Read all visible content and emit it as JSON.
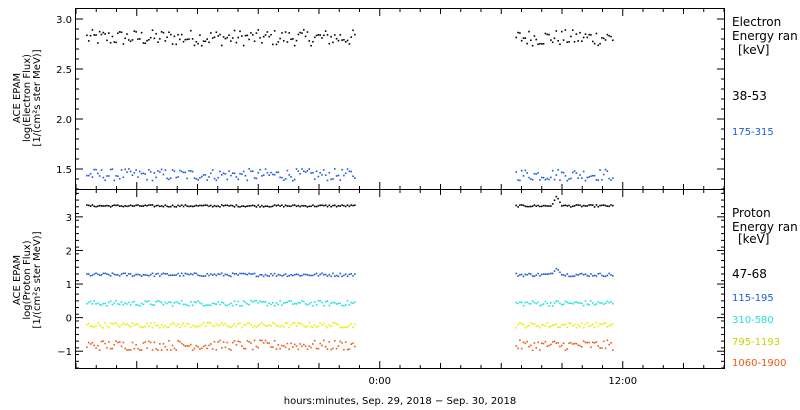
{
  "chart_data": [
    {
      "type": "scatter",
      "ylabel": [
        "ACE EPAM",
        "log(Electron Flux)",
        "[1/(cm²s ster MeV)]"
      ],
      "ylim": [
        1.3,
        3.1
      ],
      "yticks": [
        1.5,
        2.0,
        2.5,
        3.0
      ],
      "ytick_labels": [
        "1.5",
        "2.0",
        "2.5",
        "3.0"
      ],
      "legend": {
        "title": "Electron",
        "subtitle": "Energy ran",
        "unit": "[keV]"
      },
      "series": [
        {
          "name": "38-53",
          "color": "#000000",
          "mean": 2.82,
          "amp": 0.08
        },
        {
          "name": "175-315",
          "color": "#1e5bd6",
          "mean": 1.45,
          "amp": 0.06
        }
      ]
    },
    {
      "type": "scatter",
      "ylabel": [
        "ACE EPAM",
        "log(Proton Flux)",
        "[1/(cm²s ster MeV)]"
      ],
      "ylim": [
        -1.5,
        3.8
      ],
      "yticks": [
        -1,
        0,
        1,
        2,
        3
      ],
      "ytick_labels": [
        "−1",
        "0",
        "1",
        "2",
        "3"
      ],
      "legend": {
        "title": "Proton",
        "subtitle": "Energy ran",
        "unit": "[keV]"
      },
      "series": [
        {
          "name": "47-68",
          "color": "#000000",
          "mean": 3.35,
          "amp": 0.03,
          "spike": 3.65
        },
        {
          "name": "115-195",
          "color": "#1e5bd6",
          "mean": 1.3,
          "amp": 0.05,
          "spike": 1.5
        },
        {
          "name": "310-580",
          "color": "#22e0dc",
          "mean": 0.45,
          "amp": 0.08
        },
        {
          "name": "795-1193",
          "color": "#e6f000",
          "mean": -0.2,
          "amp": 0.08
        },
        {
          "name": "1060-1900",
          "color": "#ee5a14",
          "mean": -0.8,
          "amp": 0.15
        }
      ]
    }
  ],
  "xaxis": {
    "label": "hours:minutes, Sep. 29, 2018 − Sep. 30, 2018",
    "ticks": [
      "0:00",
      "12:00"
    ],
    "range_hours": [
      -15,
      17
    ],
    "data_segments_hours": [
      [
        -14.5,
        -1.2
      ],
      [
        6.7,
        11.5
      ]
    ],
    "spike_hour": 8.7
  }
}
